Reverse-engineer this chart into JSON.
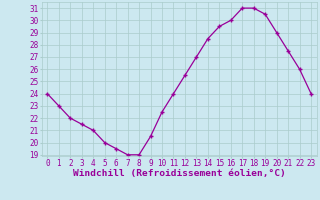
{
  "x": [
    0,
    1,
    2,
    3,
    4,
    5,
    6,
    7,
    8,
    9,
    10,
    11,
    12,
    13,
    14,
    15,
    16,
    17,
    18,
    19,
    20,
    21,
    22,
    23
  ],
  "y": [
    24,
    23,
    22,
    21.5,
    21,
    20,
    19.5,
    19,
    19,
    20.5,
    22.5,
    24,
    25.5,
    27,
    28.5,
    29.5,
    30,
    31,
    31,
    30.5,
    29,
    27.5,
    26,
    24
  ],
  "line_color": "#990099",
  "marker": "+",
  "bg_color": "#cce8f0",
  "grid_color": "#aacccc",
  "xlabel": "Windchill (Refroidissement éolien,°C)",
  "xlabel_color": "#990099",
  "tick_label_color": "#990099",
  "ylim": [
    19,
    31
  ],
  "yticks": [
    19,
    20,
    21,
    22,
    23,
    24,
    25,
    26,
    27,
    28,
    29,
    30,
    31
  ],
  "xticks": [
    0,
    1,
    2,
    3,
    4,
    5,
    6,
    7,
    8,
    9,
    10,
    11,
    12,
    13,
    14,
    15,
    16,
    17,
    18,
    19,
    20,
    21,
    22,
    23
  ],
  "tick_fontsize": 5.5,
  "xlabel_fontsize": 6.8
}
